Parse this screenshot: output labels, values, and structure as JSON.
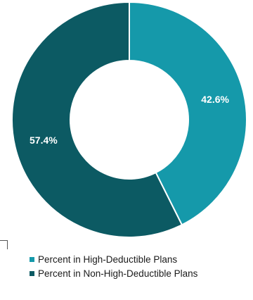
{
  "chart_data": {
    "type": "pie",
    "donut": true,
    "title": "",
    "slices": [
      {
        "label": "Percent in High-Deductible Plans",
        "value": 42.6,
        "display": "42.6%",
        "color": "#1599aa"
      },
      {
        "label": "Percent in Non-High-Deductible Plans",
        "value": 57.4,
        "display": "57.4%",
        "color": "#0c5a63"
      }
    ],
    "legend_position": "bottom-left"
  }
}
